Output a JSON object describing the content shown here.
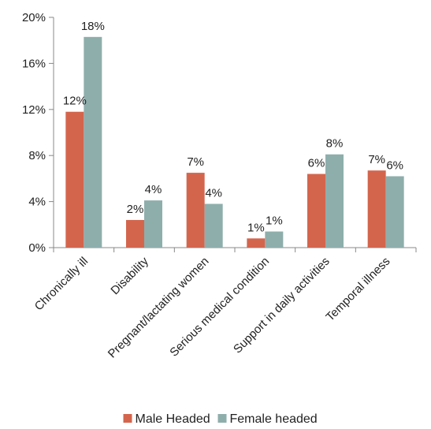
{
  "chart_data": {
    "type": "bar",
    "categories": [
      "Chronically ill",
      "Disability",
      "Pregnant/lactating women",
      "Serious medical condition",
      "Support in daily activities",
      "Temporal illness"
    ],
    "series": [
      {
        "name": "Male Headed",
        "color": "#d4654d",
        "values": [
          11.8,
          2.4,
          6.5,
          0.8,
          6.4,
          6.7
        ],
        "labels": [
          "12%",
          "2%",
          "7%",
          "1%",
          "6%",
          "7%"
        ]
      },
      {
        "name": "Female headed",
        "color": "#8eaeac",
        "values": [
          18.3,
          4.1,
          3.8,
          1.4,
          8.1,
          6.2
        ],
        "labels": [
          "18%",
          "4%",
          "4%",
          "1%",
          "8%",
          "6%"
        ]
      }
    ],
    "y_ticks": [
      "0%",
      "4%",
      "8%",
      "12%",
      "16%",
      "20%"
    ],
    "y_tick_values": [
      0,
      4,
      8,
      12,
      16,
      20
    ],
    "ylim": [
      0,
      20
    ],
    "grid": false,
    "legend_position": "bottom"
  }
}
